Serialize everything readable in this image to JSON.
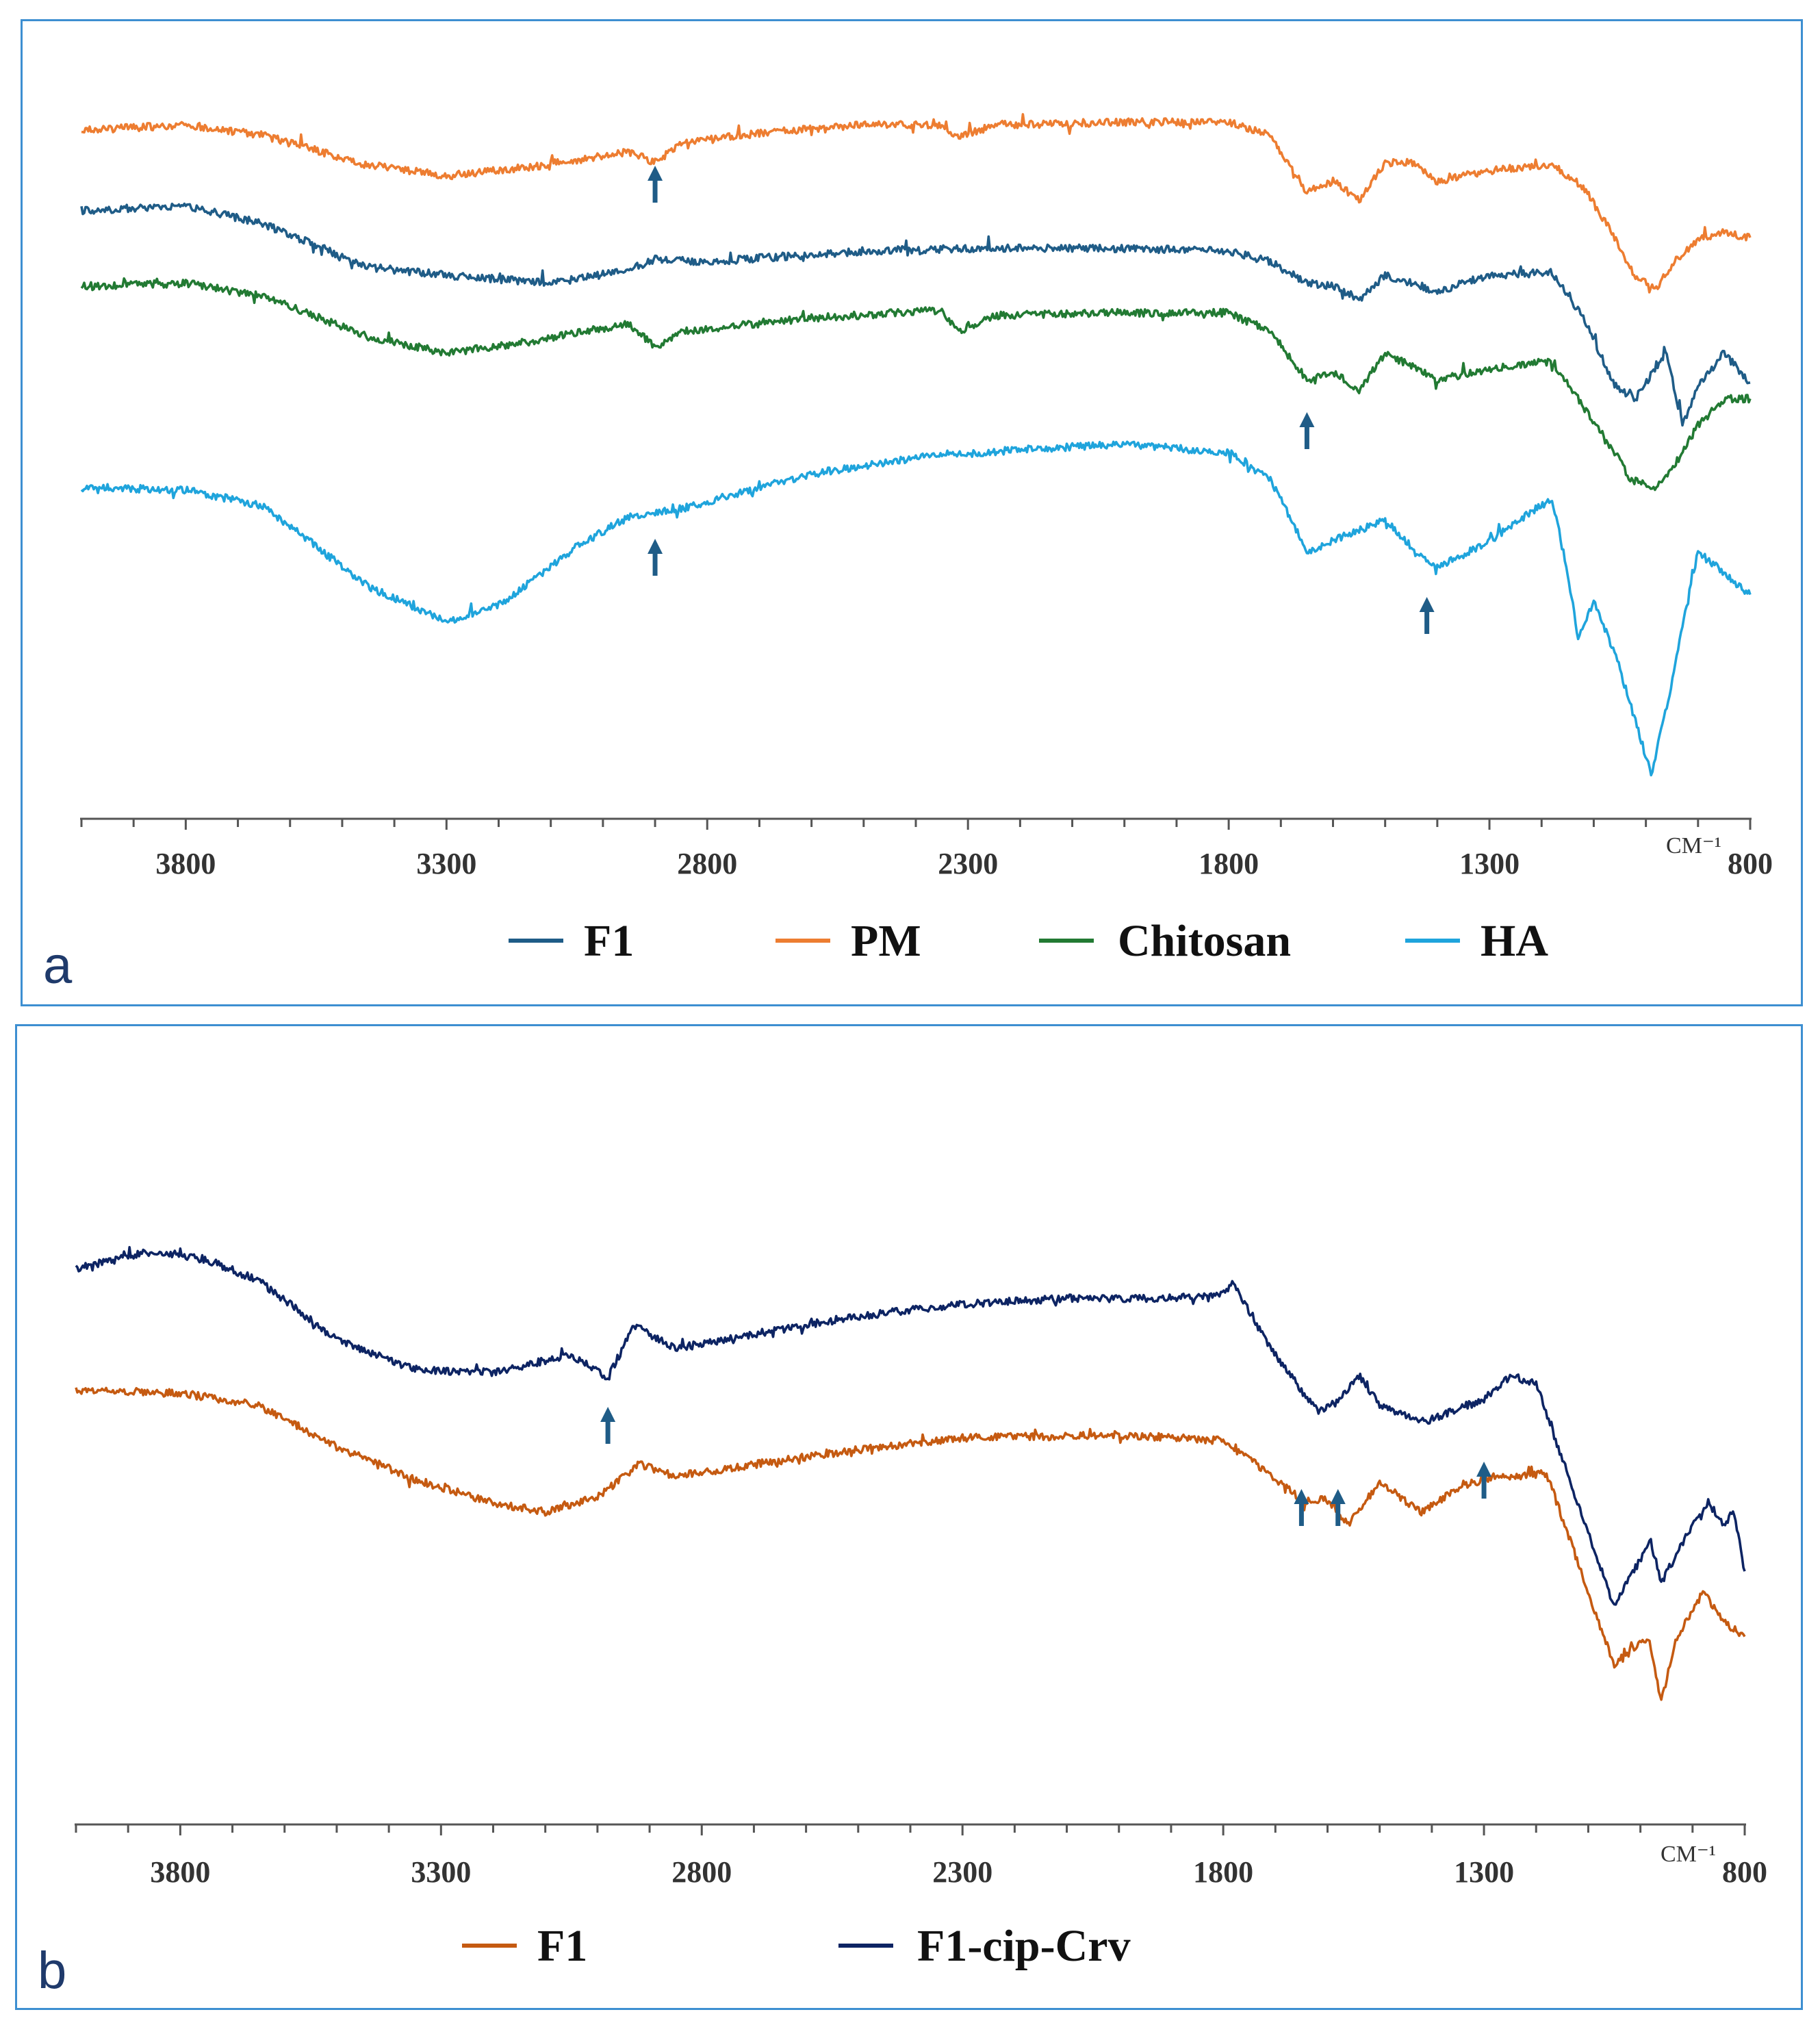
{
  "chart_data": [
    {
      "type": "line",
      "panel_label": "a",
      "xlabel": "CM⁻¹",
      "x_reversed": true,
      "xlim": [
        4000,
        800
      ],
      "x_ticks": [
        3800,
        3300,
        2800,
        2300,
        1800,
        1300,
        800
      ],
      "tick_labels": [
        "3800",
        "3300",
        "2800",
        "2300",
        "1800",
        "1300",
        "800"
      ],
      "legend": [
        "F1",
        "PM",
        "Chitosan",
        "HA"
      ],
      "legend_placement": "bottom",
      "arrows_at_wavenumber": [
        2900,
        2900,
        1650,
        1420
      ],
      "series": [
        {
          "name": "PM",
          "color": "#ed7d31",
          "points": [
            [
              4000,
              0.95
            ],
            [
              3800,
              0.97
            ],
            [
              3650,
              0.93
            ],
            [
              3450,
              0.82
            ],
            [
              3300,
              0.78
            ],
            [
              3150,
              0.81
            ],
            [
              2950,
              0.87
            ],
            [
              2900,
              0.83
            ],
            [
              2850,
              0.9
            ],
            [
              2700,
              0.94
            ],
            [
              2500,
              0.97
            ],
            [
              2350,
              0.97
            ],
            [
              2320,
              0.92
            ],
            [
              2250,
              0.97
            ],
            [
              2000,
              0.98
            ],
            [
              1800,
              0.98
            ],
            [
              1720,
              0.93
            ],
            [
              1650,
              0.72
            ],
            [
              1600,
              0.76
            ],
            [
              1550,
              0.69
            ],
            [
              1500,
              0.83
            ],
            [
              1450,
              0.83
            ],
            [
              1400,
              0.76
            ],
            [
              1300,
              0.8
            ],
            [
              1180,
              0.82
            ],
            [
              1120,
              0.74
            ],
            [
              1060,
              0.55
            ],
            [
              1020,
              0.4
            ],
            [
              980,
              0.36
            ],
            [
              950,
              0.45
            ],
            [
              900,
              0.54
            ],
            [
              850,
              0.57
            ],
            [
              800,
              0.55
            ]
          ]
        },
        {
          "name": "F1",
          "color": "#1f5c87",
          "points": [
            [
              4000,
              0.65
            ],
            [
              3800,
              0.67
            ],
            [
              3650,
              0.6
            ],
            [
              3450,
              0.44
            ],
            [
              3300,
              0.41
            ],
            [
              3100,
              0.38
            ],
            [
              2950,
              0.43
            ],
            [
              2900,
              0.47
            ],
            [
              2800,
              0.46
            ],
            [
              2500,
              0.5
            ],
            [
              2300,
              0.51
            ],
            [
              2000,
              0.51
            ],
            [
              1800,
              0.5
            ],
            [
              1720,
              0.46
            ],
            [
              1650,
              0.38
            ],
            [
              1600,
              0.37
            ],
            [
              1550,
              0.32
            ],
            [
              1500,
              0.41
            ],
            [
              1400,
              0.35
            ],
            [
              1300,
              0.41
            ],
            [
              1180,
              0.42
            ],
            [
              1120,
              0.25
            ],
            [
              1060,
              0.0
            ],
            [
              1020,
              -0.05
            ],
            [
              980,
              0.07
            ],
            [
              960,
              0.12
            ],
            [
              930,
              -0.15
            ],
            [
              900,
              0.0
            ],
            [
              850,
              0.12
            ],
            [
              800,
              0.01
            ]
          ]
        },
        {
          "name": "Chitosan",
          "color": "#227a33",
          "points": [
            [
              4000,
              0.37
            ],
            [
              3800,
              0.38
            ],
            [
              3650,
              0.33
            ],
            [
              3450,
              0.18
            ],
            [
              3300,
              0.12
            ],
            [
              3150,
              0.16
            ],
            [
              2950,
              0.23
            ],
            [
              2900,
              0.14
            ],
            [
              2850,
              0.2
            ],
            [
              2600,
              0.25
            ],
            [
              2350,
              0.28
            ],
            [
              2320,
              0.2
            ],
            [
              2250,
              0.26
            ],
            [
              2000,
              0.27
            ],
            [
              1800,
              0.27
            ],
            [
              1720,
              0.2
            ],
            [
              1650,
              0.02
            ],
            [
              1600,
              0.05
            ],
            [
              1550,
              -0.02
            ],
            [
              1500,
              0.12
            ],
            [
              1400,
              0.02
            ],
            [
              1300,
              0.06
            ],
            [
              1180,
              0.09
            ],
            [
              1120,
              -0.08
            ],
            [
              1060,
              -0.25
            ],
            [
              1030,
              -0.35
            ],
            [
              980,
              -0.38
            ],
            [
              940,
              -0.28
            ],
            [
              900,
              -0.15
            ],
            [
              850,
              -0.05
            ],
            [
              800,
              -0.05
            ]
          ]
        },
        {
          "name": "HA",
          "color": "#1fa4dc",
          "points": [
            [
              4000,
              -0.38
            ],
            [
              3800,
              -0.39
            ],
            [
              3650,
              -0.45
            ],
            [
              3450,
              -0.75
            ],
            [
              3300,
              -0.88
            ],
            [
              3200,
              -0.82
            ],
            [
              3050,
              -0.6
            ],
            [
              2950,
              -0.49
            ],
            [
              2850,
              -0.46
            ],
            [
              2600,
              -0.33
            ],
            [
              2400,
              -0.27
            ],
            [
              2200,
              -0.24
            ],
            [
              2000,
              -0.22
            ],
            [
              1800,
              -0.25
            ],
            [
              1720,
              -0.35
            ],
            [
              1650,
              -0.62
            ],
            [
              1600,
              -0.58
            ],
            [
              1500,
              -0.5
            ],
            [
              1450,
              -0.6
            ],
            [
              1400,
              -0.68
            ],
            [
              1300,
              -0.58
            ],
            [
              1180,
              -0.42
            ],
            [
              1150,
              -0.7
            ],
            [
              1130,
              -0.95
            ],
            [
              1100,
              -0.8
            ],
            [
              1060,
              -1.0
            ],
            [
              1020,
              -1.25
            ],
            [
              990,
              -1.45
            ],
            [
              960,
              -1.2
            ],
            [
              930,
              -0.9
            ],
            [
              900,
              -0.62
            ],
            [
              850,
              -0.7
            ],
            [
              800,
              -0.78
            ]
          ]
        }
      ]
    },
    {
      "type": "line",
      "panel_label": "b",
      "xlabel": "CM⁻¹",
      "x_reversed": true,
      "xlim": [
        4000,
        800
      ],
      "x_ticks": [
        3800,
        3300,
        2800,
        2300,
        1800,
        1300,
        800
      ],
      "tick_labels": [
        "3800",
        "3300",
        "2800",
        "2300",
        "1800",
        "1300",
        "800"
      ],
      "legend": [
        "F1",
        "F1-cip-Crv"
      ],
      "legend_placement": "bottom",
      "arrows_at_wavenumber": [
        2980,
        1650,
        1580,
        1300
      ],
      "series": [
        {
          "name": "F1-cip-Crv",
          "color": "#0d2463",
          "points": [
            [
              4000,
              0.74
            ],
            [
              3850,
              0.8
            ],
            [
              3750,
              0.77
            ],
            [
              3650,
              0.7
            ],
            [
              3500,
              0.5
            ],
            [
              3350,
              0.4
            ],
            [
              3200,
              0.39
            ],
            [
              3050,
              0.45
            ],
            [
              2980,
              0.37
            ],
            [
              2930,
              0.55
            ],
            [
              2850,
              0.47
            ],
            [
              2700,
              0.52
            ],
            [
              2500,
              0.58
            ],
            [
              2300,
              0.62
            ],
            [
              2100,
              0.64
            ],
            [
              1900,
              0.64
            ],
            [
              1810,
              0.65
            ],
            [
              1780,
              0.69
            ],
            [
              1720,
              0.5
            ],
            [
              1650,
              0.33
            ],
            [
              1620,
              0.26
            ],
            [
              1580,
              0.29
            ],
            [
              1540,
              0.38
            ],
            [
              1500,
              0.28
            ],
            [
              1420,
              0.22
            ],
            [
              1360,
              0.26
            ],
            [
              1300,
              0.3
            ],
            [
              1250,
              0.38
            ],
            [
              1200,
              0.35
            ],
            [
              1160,
              0.15
            ],
            [
              1100,
              -0.15
            ],
            [
              1050,
              -0.4
            ],
            [
              1020,
              -0.3
            ],
            [
              980,
              -0.18
            ],
            [
              960,
              -0.32
            ],
            [
              900,
              -0.12
            ],
            [
              870,
              -0.05
            ],
            [
              840,
              -0.12
            ],
            [
              820,
              -0.08
            ],
            [
              800,
              -0.28
            ]
          ]
        },
        {
          "name": "F1",
          "color": "#c55a11",
          "points": [
            [
              4000,
              0.33
            ],
            [
              3800,
              0.32
            ],
            [
              3650,
              0.28
            ],
            [
              3500,
              0.14
            ],
            [
              3350,
              0.03
            ],
            [
              3200,
              -0.05
            ],
            [
              3100,
              -0.08
            ],
            [
              3000,
              -0.03
            ],
            [
              2920,
              0.08
            ],
            [
              2850,
              0.04
            ],
            [
              2700,
              0.08
            ],
            [
              2500,
              0.13
            ],
            [
              2300,
              0.17
            ],
            [
              2000,
              0.18
            ],
            [
              1800,
              0.16
            ],
            [
              1720,
              0.06
            ],
            [
              1650,
              -0.04
            ],
            [
              1600,
              -0.04
            ],
            [
              1560,
              -0.12
            ],
            [
              1500,
              0.02
            ],
            [
              1420,
              -0.08
            ],
            [
              1350,
              0.0
            ],
            [
              1300,
              0.03
            ],
            [
              1180,
              0.05
            ],
            [
              1140,
              -0.15
            ],
            [
              1080,
              -0.45
            ],
            [
              1050,
              -0.6
            ],
            [
              1020,
              -0.55
            ],
            [
              985,
              -0.5
            ],
            [
              960,
              -0.72
            ],
            [
              930,
              -0.5
            ],
            [
              880,
              -0.35
            ],
            [
              840,
              -0.45
            ],
            [
              800,
              -0.5
            ]
          ]
        }
      ]
    }
  ]
}
